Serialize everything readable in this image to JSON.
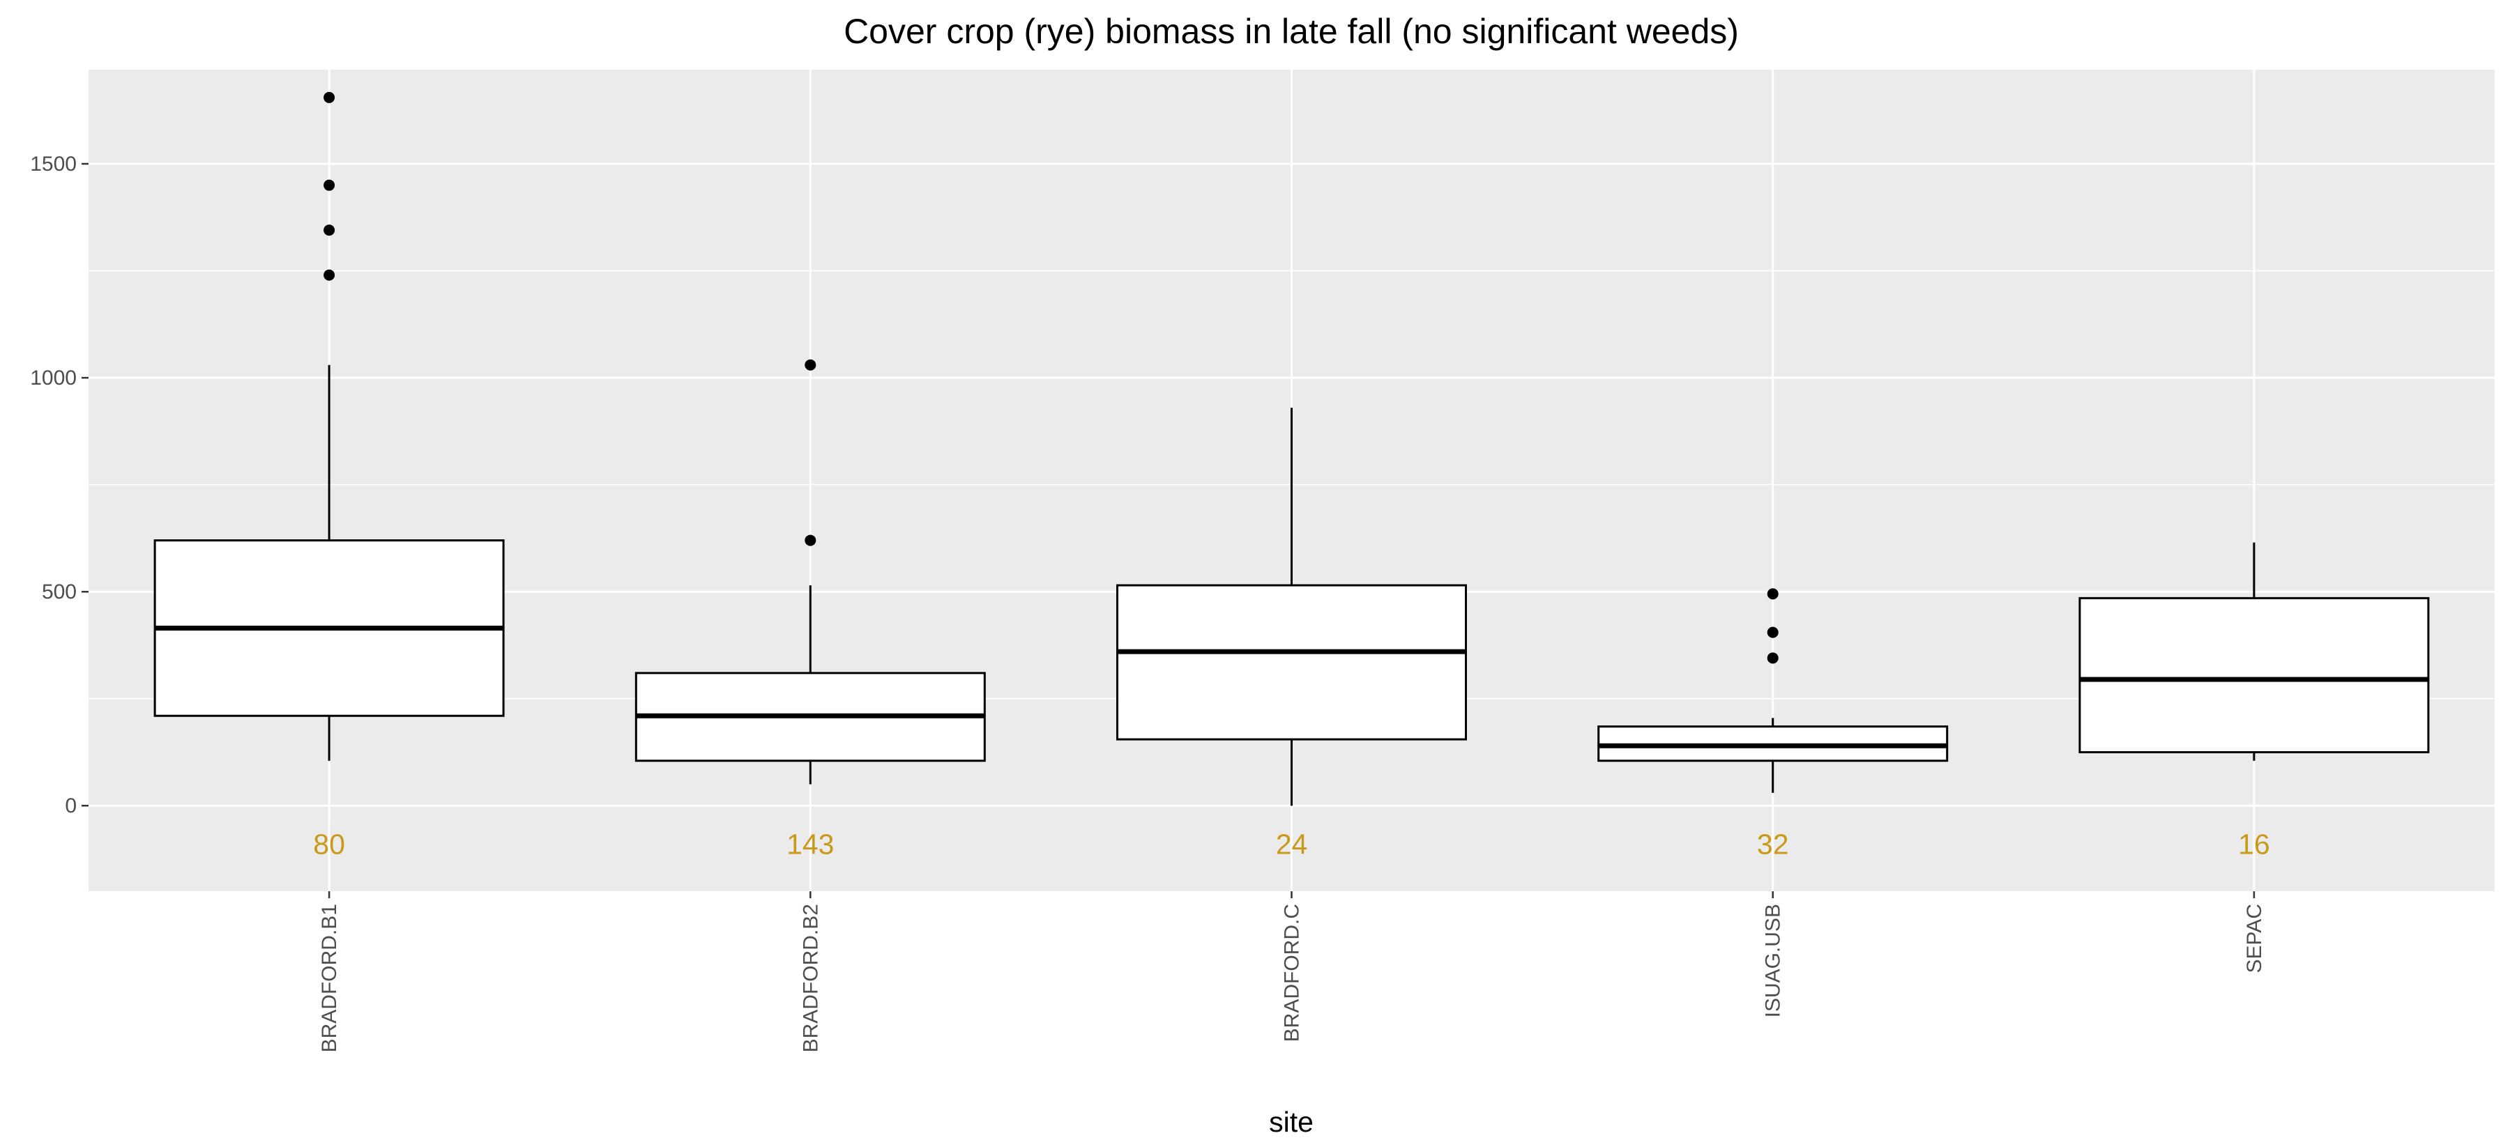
{
  "chart_data": {
    "type": "boxplot",
    "title": "Cover crop (rye) biomass in late fall (no significant weeds)",
    "xlabel": "site",
    "ylabel": "",
    "ylim": [
      -200,
      1720
    ],
    "yticks": [
      0,
      500,
      1000,
      1500
    ],
    "ytick_labels": [
      "0",
      "500",
      "1000",
      "1500"
    ],
    "grid": true,
    "background": "#ebebeb",
    "grid_color": "#ffffff",
    "count_label_color": "#C99A1A",
    "count_label_y": -90,
    "categories": [
      "BRADFORD.B1",
      "BRADFORD.B2",
      "BRADFORD.C",
      "ISUAG.USB",
      "SEPAC"
    ],
    "counts": [
      "80",
      "143",
      "24",
      "32",
      "16"
    ],
    "boxes": [
      {
        "whisker_low": 105,
        "q1": 210,
        "median": 415,
        "q3": 620,
        "whisker_high": 1030,
        "outliers": [
          1240,
          1345,
          1450,
          1655
        ]
      },
      {
        "whisker_low": 50,
        "q1": 105,
        "median": 210,
        "q3": 310,
        "whisker_high": 515,
        "outliers": [
          620,
          1030
        ]
      },
      {
        "whisker_low": 0,
        "q1": 155,
        "median": 360,
        "q3": 515,
        "whisker_high": 930,
        "outliers": []
      },
      {
        "whisker_low": 30,
        "q1": 105,
        "median": 140,
        "q3": 185,
        "whisker_high": 205,
        "outliers": [
          345,
          405,
          495
        ]
      },
      {
        "whisker_low": 105,
        "q1": 125,
        "median": 295,
        "q3": 485,
        "whisker_high": 615,
        "outliers": []
      }
    ]
  }
}
